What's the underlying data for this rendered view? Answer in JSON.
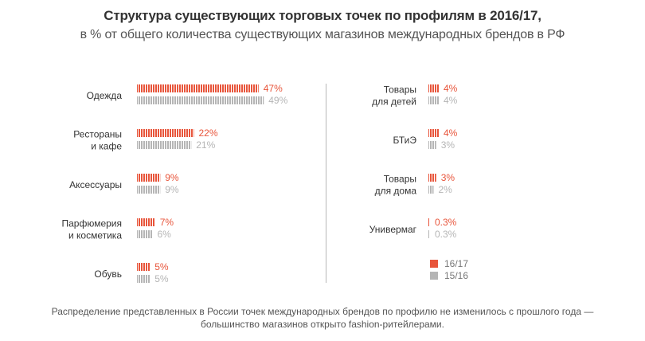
{
  "header": {
    "title": "Структура существующих торговых точек по профилям в 2016/17,",
    "subtitle": "в % от общего количества существующих магазинов международных брендов в РФ"
  },
  "footer": {
    "note_line1": "Распределение представленных в России точек международных брендов по профилю не изменилось с прошлого года —",
    "note_line2": "большинство магазинов открыто fashion-ритейлерами."
  },
  "colors": {
    "current": "#e8553b",
    "previous": "#b5b5b5"
  },
  "chart_data": {
    "type": "bar",
    "orientation": "horizontal",
    "series": [
      {
        "name": "16/17",
        "color": "#e8553b"
      },
      {
        "name": "15/16",
        "color": "#b5b5b5"
      }
    ],
    "groups": [
      {
        "categories": [
          {
            "lines": [
              "Одежда"
            ],
            "current": 47,
            "previous": 49,
            "current_label": "47%",
            "previous_label": "49%"
          },
          {
            "lines": [
              "Рестораны",
              "и кафе"
            ],
            "current": 22,
            "previous": 21,
            "current_label": "22%",
            "previous_label": "21%"
          },
          {
            "lines": [
              "Аксессуары"
            ],
            "current": 9,
            "previous": 9,
            "current_label": "9%",
            "previous_label": "9%"
          },
          {
            "lines": [
              "Парфюмерия",
              "и косметика"
            ],
            "current": 7,
            "previous": 6,
            "current_label": "7%",
            "previous_label": "6%"
          },
          {
            "lines": [
              "Обувь"
            ],
            "current": 5,
            "previous": 5,
            "current_label": "5%",
            "previous_label": "5%"
          }
        ]
      },
      {
        "categories": [
          {
            "lines": [
              "Товары",
              "для детей"
            ],
            "current": 4,
            "previous": 4,
            "current_label": "4%",
            "previous_label": "4%"
          },
          {
            "lines": [
              "БТиЭ"
            ],
            "current": 4,
            "previous": 3,
            "current_label": "4%",
            "previous_label": "3%"
          },
          {
            "lines": [
              "Товары",
              "для дома"
            ],
            "current": 3,
            "previous": 2,
            "current_label": "3%",
            "previous_label": "2%"
          },
          {
            "lines": [
              "Универмаг"
            ],
            "current": 0.3,
            "previous": 0.3,
            "current_label": "0.3%",
            "previous_label": "0.3%"
          }
        ]
      }
    ],
    "legend": {
      "position": "bottom-right of right panel",
      "entries": [
        "16/17",
        "15/16"
      ]
    }
  }
}
